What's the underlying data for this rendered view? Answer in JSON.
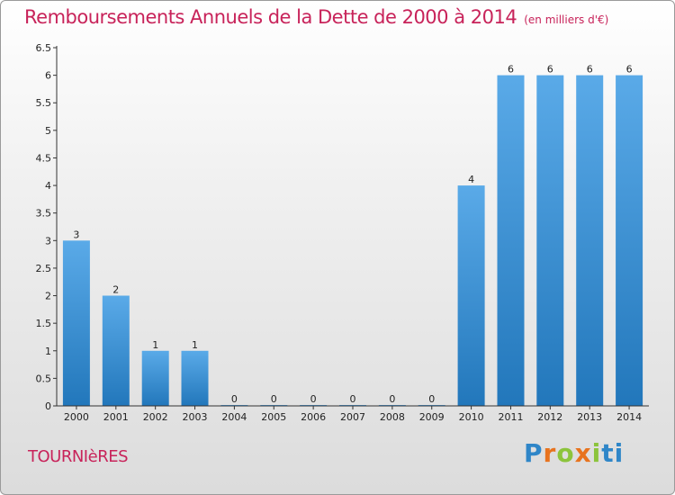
{
  "title": "Remboursements Annuels de la Dette de 2000 à 2014",
  "unit": "(en milliers d'€)",
  "place": "TOURNIèRES",
  "brand": "Proxiti",
  "colors": {
    "title": "#c8235a",
    "bar_light": "#5aaae8",
    "bar_dark": "#2277bb",
    "brand_letters": [
      "#2f86c8",
      "#e8731e",
      "#8cc43c",
      "#e8731e",
      "#8cc43c",
      "#2f86c8",
      "#2f86c8"
    ]
  },
  "chart_data": {
    "type": "bar",
    "categories": [
      "2000",
      "2001",
      "2002",
      "2003",
      "2004",
      "2005",
      "2006",
      "2007",
      "2008",
      "2009",
      "2010",
      "2011",
      "2012",
      "2013",
      "2014"
    ],
    "values": [
      3,
      2,
      1,
      1,
      0,
      0,
      0,
      0,
      0,
      0,
      4,
      6,
      6,
      6,
      6
    ],
    "value_labels": [
      "3",
      "2",
      "1",
      "1",
      "0",
      "0",
      "0",
      "0",
      "0",
      "0",
      "4",
      "6",
      "6",
      "6",
      "6"
    ],
    "yticks": [
      "0",
      "0.5",
      "1",
      "1.5",
      "2",
      "2.5",
      "3",
      "3.5",
      "4",
      "4.5",
      "5",
      "5.5",
      "6",
      "6.5"
    ],
    "ylim": [
      0,
      6.5
    ],
    "grid": false,
    "legend": "none"
  }
}
